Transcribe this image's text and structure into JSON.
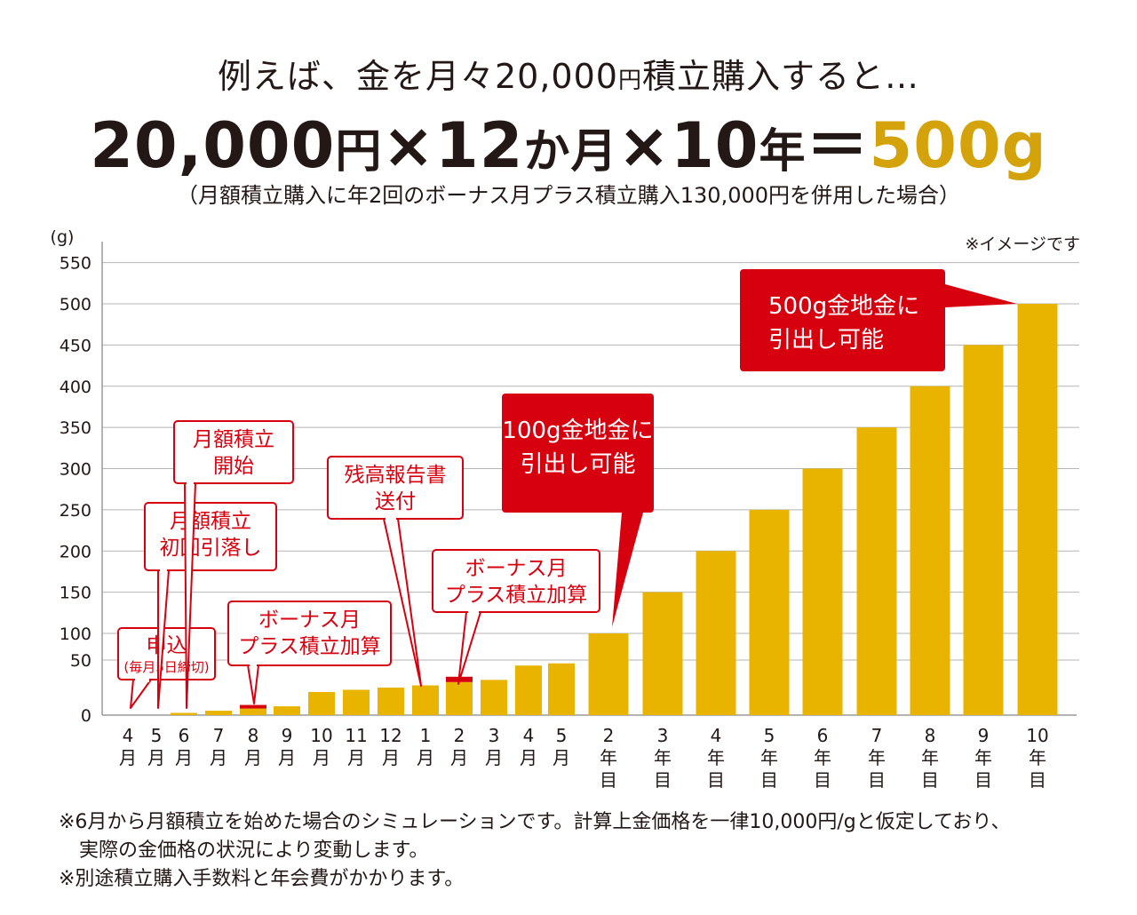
{
  "intro": {
    "text1": "例えば、金を月々20,000",
    "small_yen": "円",
    "text2": "積立購入すると…"
  },
  "formula": {
    "part1": "20,000",
    "unit1": "円",
    "part2": "×12",
    "unit2": "か月",
    "part3": "×10",
    "unit3": "年",
    "part4": "＝",
    "result": "500g"
  },
  "subtitle": "（月額積立購入に年2回のボーナス月プラス積立購入130,000円を併用した場合）",
  "image_note": "※イメージです",
  "footnotes": [
    "※6月から月額積立を始めた場合のシミュレーションです。計算上金価格を一律10,000円/gと仮定しており、",
    "実際の金価格の状況により変動します。",
    "※別途積立購入手数料と年会費がかかります。"
  ],
  "colors": {
    "gold": "#e8b400",
    "red": "#d7000f",
    "text": "#231815",
    "grid": "#b5b5b5",
    "result": "#d4a20a"
  },
  "chart_data": {
    "type": "bar",
    "ylabel": "(g)",
    "ylim": [
      0,
      550
    ],
    "yticks": [
      0,
      50,
      100,
      150,
      200,
      250,
      300,
      350,
      400,
      450,
      500,
      550
    ],
    "grid": true,
    "categories": [
      [
        "4",
        "月"
      ],
      [
        "5",
        "月"
      ],
      [
        "6",
        "月"
      ],
      [
        "7",
        "月"
      ],
      [
        "8",
        "月"
      ],
      [
        "9",
        "月"
      ],
      [
        "10",
        "月"
      ],
      [
        "11",
        "月"
      ],
      [
        "12",
        "月"
      ],
      [
        "1",
        "月"
      ],
      [
        "2",
        "月"
      ],
      [
        "3",
        "月"
      ],
      [
        "4",
        "月"
      ],
      [
        "5",
        "月"
      ],
      [
        "2",
        "年",
        "目"
      ],
      [
        "3",
        "年",
        "目"
      ],
      [
        "4",
        "年",
        "目"
      ],
      [
        "5",
        "年",
        "目"
      ],
      [
        "6",
        "年",
        "目"
      ],
      [
        "7",
        "年",
        "目"
      ],
      [
        "8",
        "年",
        "目"
      ],
      [
        "9",
        "年",
        "目"
      ],
      [
        "10",
        "年",
        "目"
      ]
    ],
    "values": [
      0,
      0,
      2,
      4,
      6,
      8,
      21,
      23,
      25,
      27,
      30,
      32,
      45,
      47,
      100,
      150,
      200,
      250,
      300,
      350,
      400,
      450,
      500
    ],
    "bonus_increment": [
      0,
      0,
      0,
      0,
      2,
      0,
      0,
      0,
      0,
      0,
      6,
      0,
      0,
      0,
      0,
      0,
      0,
      0,
      0,
      0,
      0,
      0,
      0
    ],
    "annotations": [
      {
        "id": "apply",
        "style": "outline",
        "lines": [
          "申込"
        ],
        "sub": "(毎月5日締切)",
        "target": 0
      },
      {
        "id": "first-debit",
        "style": "outline",
        "lines": [
          "月額積立",
          "初回引落し"
        ],
        "target": 1
      },
      {
        "id": "start",
        "style": "outline",
        "lines": [
          "月額積立",
          "開始"
        ],
        "target": 2
      },
      {
        "id": "bonus1",
        "style": "outline",
        "lines": [
          "ボーナス月",
          "プラス積立加算"
        ],
        "target": 4
      },
      {
        "id": "report",
        "style": "outline",
        "lines": [
          "残高報告書",
          "送付"
        ],
        "target": 9
      },
      {
        "id": "bonus2",
        "style": "outline",
        "lines": [
          "ボーナス月",
          "プラス積立加算"
        ],
        "target": 10
      },
      {
        "id": "withdraw100",
        "style": "filled",
        "lines": [
          "100g金地金に",
          "引出し可能"
        ],
        "target": 14
      },
      {
        "id": "withdraw500",
        "style": "filled",
        "lines": [
          "500g金地金に",
          "引出し可能"
        ],
        "target": 22
      }
    ]
  }
}
